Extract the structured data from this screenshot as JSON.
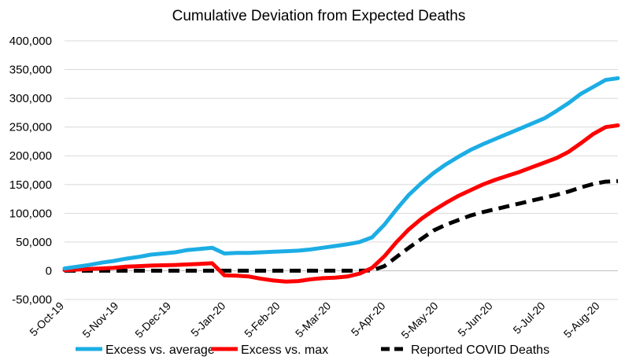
{
  "chart_data": {
    "type": "line",
    "title": "Cumulative Deviation from Expected Deaths",
    "xlabel": "",
    "ylabel": "",
    "x": [
      "5-Oct-19",
      "12-Oct-19",
      "19-Oct-19",
      "26-Oct-19",
      "2-Nov-19",
      "9-Nov-19",
      "16-Nov-19",
      "23-Nov-19",
      "30-Nov-19",
      "7-Dec-19",
      "14-Dec-19",
      "21-Dec-19",
      "28-Dec-19",
      "4-Jan-20",
      "11-Jan-20",
      "18-Jan-20",
      "25-Jan-20",
      "1-Feb-20",
      "8-Feb-20",
      "15-Feb-20",
      "22-Feb-20",
      "29-Feb-20",
      "7-Mar-20",
      "14-Mar-20",
      "21-Mar-20",
      "28-Mar-20",
      "4-Apr-20",
      "11-Apr-20",
      "18-Apr-20",
      "25-Apr-20",
      "2-May-20",
      "9-May-20",
      "16-May-20",
      "23-May-20",
      "30-May-20",
      "6-Jun-20",
      "13-Jun-20",
      "20-Jun-20",
      "27-Jun-20",
      "4-Jul-20",
      "11-Jul-20",
      "18-Jul-20",
      "25-Jul-20",
      "1-Aug-20",
      "8-Aug-20",
      "15-Aug-20"
    ],
    "x_tick_labels": [
      "5-Oct-19",
      "5-Nov-19",
      "5-Dec-19",
      "5-Jan-20",
      "5-Feb-20",
      "5-Mar-20",
      "5-Apr-20",
      "5-May-20",
      "5-Jun-20",
      "5-Jul-20",
      "5-Aug-20"
    ],
    "x_tick_positions": [
      0,
      4.43,
      8.71,
      13.14,
      17.57,
      21.71,
      26.14,
      30.43,
      34.86,
      39.14,
      43.57
    ],
    "ylim": [
      -50000,
      400000
    ],
    "y_ticks": [
      -50000,
      0,
      50000,
      100000,
      150000,
      200000,
      250000,
      300000,
      350000,
      400000
    ],
    "y_tick_labels": [
      "-50,000",
      "0",
      "50,000",
      "100,000",
      "150,000",
      "200,000",
      "250,000",
      "300,000",
      "350,000",
      "400,000"
    ],
    "grid": true,
    "legend_position": "bottom",
    "series": [
      {
        "name": "Excess vs. average",
        "color": "#1CADE4",
        "style": "solid",
        "values": [
          4000,
          7000,
          10000,
          14000,
          17000,
          21000,
          24000,
          28000,
          30000,
          32000,
          36000,
          38000,
          40000,
          30000,
          31000,
          31000,
          32000,
          33000,
          34000,
          35000,
          37000,
          40000,
          43000,
          46000,
          50000,
          58000,
          80000,
          107000,
          132000,
          152000,
          170000,
          185000,
          198000,
          210000,
          220000,
          229000,
          238000,
          247000,
          256000,
          265000,
          278000,
          292000,
          308000,
          320000,
          332000,
          335000
        ]
      },
      {
        "name": "Excess vs. max",
        "color": "#FF0000",
        "style": "solid",
        "values": [
          1000,
          2000,
          3000,
          4000,
          5000,
          7000,
          8000,
          9000,
          9500,
          10000,
          11000,
          12000,
          13000,
          -8000,
          -8500,
          -10000,
          -14000,
          -17000,
          -19000,
          -18000,
          -15000,
          -13000,
          -12000,
          -10000,
          -5000,
          5000,
          25000,
          50000,
          72000,
          90000,
          105000,
          118000,
          130000,
          140000,
          150000,
          158000,
          165000,
          172000,
          180000,
          188000,
          196000,
          207000,
          222000,
          238000,
          250000,
          253000
        ]
      },
      {
        "name": "Reported COVID Deaths",
        "color": "#000000",
        "style": "dashed",
        "values": [
          0,
          0,
          0,
          0,
          0,
          0,
          0,
          0,
          0,
          0,
          0,
          0,
          0,
          0,
          0,
          0,
          0,
          0,
          0,
          0,
          0,
          0,
          0,
          0,
          0,
          500,
          8000,
          24000,
          40000,
          55000,
          70000,
          80000,
          88000,
          96000,
          102000,
          107000,
          112000,
          117000,
          122000,
          127000,
          132000,
          138000,
          145000,
          151000,
          155000,
          156000
        ]
      }
    ]
  }
}
